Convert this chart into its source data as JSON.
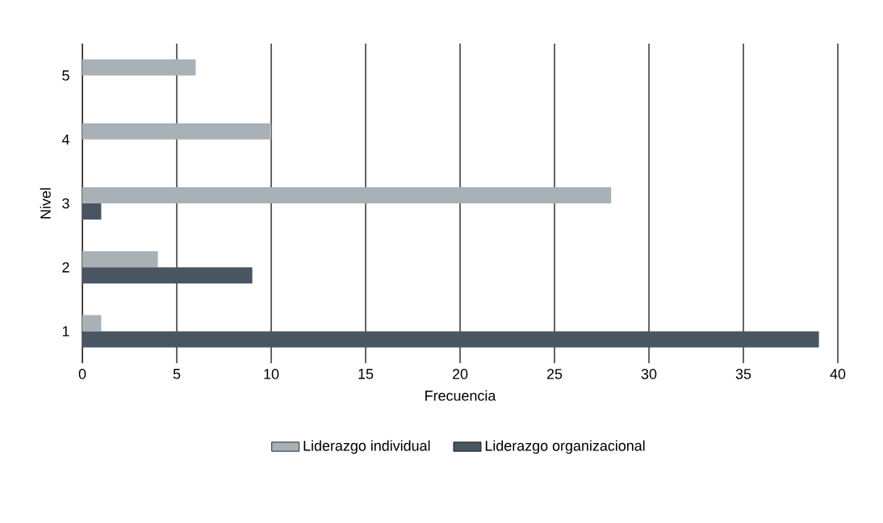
{
  "chart_data": {
    "type": "bar",
    "orientation": "horizontal",
    "xlabel": "Frecuencia",
    "ylabel": "Nivel",
    "categories": [
      "5",
      "4",
      "3",
      "2",
      "1"
    ],
    "series": [
      {
        "name": "Liderazgo individual",
        "color": "#a9b0b6",
        "values": [
          6,
          10,
          28,
          4,
          1
        ]
      },
      {
        "name": "Liderazgo organizacional",
        "color": "#4a5562",
        "values": [
          0,
          0,
          1,
          9,
          39
        ]
      }
    ],
    "xlim": [
      0,
      40
    ],
    "xticks": [
      0,
      5,
      10,
      15,
      20,
      25,
      30,
      35,
      40
    ],
    "grid": "x",
    "legend": "bottom"
  }
}
